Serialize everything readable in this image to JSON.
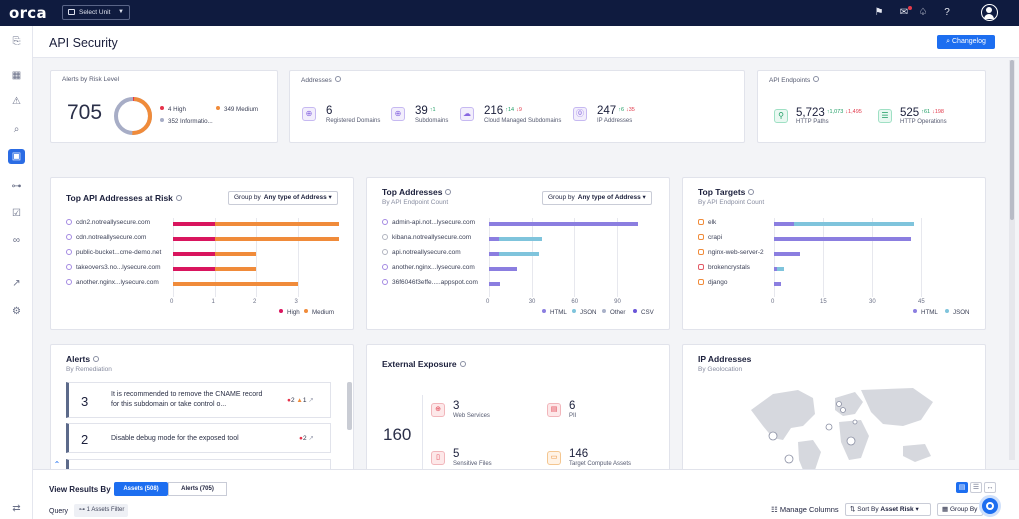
{
  "topbar": {
    "logo": "orca",
    "unit_select": "Select Unit"
  },
  "page": {
    "title": "API Security",
    "changelog": "Changelog"
  },
  "risk": {
    "title": "Alerts by Risk Level",
    "total": "705",
    "high": "4 High",
    "medium": "349 Medium",
    "informational": "352 Informatio...",
    "colors": {
      "high": "#e6334b",
      "medium": "#f08b3a",
      "informational": "#a7adc6"
    }
  },
  "addresses": {
    "title": "Addresses",
    "items": [
      {
        "value": "6",
        "label": "Registered Domains",
        "up": "",
        "down": ""
      },
      {
        "value": "39",
        "label": "Subdomains",
        "up": "↑1",
        "down": ""
      },
      {
        "value": "216",
        "label": "Cloud Managed Subdomains",
        "up": "↑14",
        "down": "↓9"
      },
      {
        "value": "247",
        "label": "IP Addresses",
        "up": "↑6",
        "down": "↓35"
      }
    ]
  },
  "endpoints": {
    "title": "API Endpoints",
    "items": [
      {
        "value": "5,723",
        "label": "HTTP Paths",
        "up": "↑1,073",
        "down": "↓1,495"
      },
      {
        "value": "525",
        "label": "HTTP Operations",
        "up": "↑61",
        "down": "↓198"
      }
    ]
  },
  "top_addresses_at_risk": {
    "title": "Top API Addresses at Risk",
    "group_by_label": "Group by",
    "group_by_value": "Any type of Address",
    "legend": [
      "High",
      "Medium"
    ],
    "chart_data": {
      "type": "bar",
      "orientation": "horizontal",
      "stacked": true,
      "categories": [
        "cdn2.notreallysecure.com",
        "cdn.notreallysecure.com",
        "public-bucket...cme-demo.net",
        "takeovers3.no...lysecure.com",
        "another.nginx...lysecure.com"
      ],
      "series": [
        {
          "name": "High",
          "values": [
            1,
            1,
            1,
            1,
            0
          ],
          "color": "#d9155e"
        },
        {
          "name": "Medium",
          "values": [
            3,
            3,
            1,
            1,
            3
          ],
          "color": "#f08b3a"
        }
      ],
      "xticks": [
        "0",
        "1",
        "2",
        "3"
      ],
      "xlim": [
        0,
        4
      ]
    }
  },
  "top_addresses": {
    "title": "Top Addresses",
    "subtitle": "By API Endpoint Count",
    "group_by_label": "Group by",
    "group_by_value": "Any type of Address",
    "legend": [
      "HTML",
      "JSON",
      "Other",
      "CSV"
    ],
    "chart_data": {
      "type": "bar",
      "orientation": "horizontal",
      "stacked": true,
      "categories": [
        "admin-api.not...lysecure.com",
        "kibana.notreallysecure.com",
        "api.notreallysecure.com",
        "another.nginx...lysecure.com",
        "36f6046f3effe.....appspot.com"
      ],
      "series": [
        {
          "name": "HTML",
          "values": [
            105,
            7,
            7,
            20,
            8
          ],
          "color": "#8b7ee0"
        },
        {
          "name": "JSON",
          "values": [
            0,
            30,
            28,
            0,
            0
          ],
          "color": "#7fc4dc"
        },
        {
          "name": "Other",
          "values": [
            0,
            0,
            0,
            0,
            0
          ],
          "color": "#a9b1c8"
        },
        {
          "name": "CSV",
          "values": [
            0,
            0,
            0,
            0,
            0
          ],
          "color": "#6a55d8"
        }
      ],
      "xticks": [
        "0",
        "30",
        "60",
        "90"
      ],
      "xlim": [
        0,
        118
      ]
    }
  },
  "top_targets": {
    "title": "Top Targets",
    "subtitle": "By API Endpoint Count",
    "legend": [
      "HTML",
      "JSON"
    ],
    "chart_data": {
      "type": "bar",
      "orientation": "horizontal",
      "stacked": true,
      "categories": [
        "elk",
        "crapi",
        "nginx-web-server-2",
        "brokencrystals",
        "django"
      ],
      "series": [
        {
          "name": "HTML",
          "values": [
            6,
            42,
            8,
            1,
            2
          ],
          "color": "#8b7ee0"
        },
        {
          "name": "JSON",
          "values": [
            37,
            0,
            0,
            2,
            0
          ],
          "color": "#7fc4dc"
        }
      ],
      "xticks": [
        "0",
        "15",
        "30",
        "45"
      ],
      "xlim": [
        0,
        60
      ]
    }
  },
  "alerts": {
    "title": "Alerts",
    "subtitle": "By Remediation",
    "items": [
      {
        "num": "3",
        "text": "It is recommended to remove the CNAME record for this subdomain or take control o...",
        "high": "2",
        "medium": "1"
      },
      {
        "num": "2",
        "text": "Disable debug mode for the exposed tool",
        "high": "2",
        "medium": ""
      }
    ]
  },
  "external_exposure": {
    "title": "External Exposure",
    "total": "160",
    "items": [
      {
        "value": "3",
        "label": "Web Services"
      },
      {
        "value": "6",
        "label": "PII"
      },
      {
        "value": "5",
        "label": "Sensitive Files"
      },
      {
        "value": "146",
        "label": "Target Compute Assets"
      }
    ]
  },
  "ip_addresses": {
    "title": "IP Addresses",
    "subtitle": "By Geolocation"
  },
  "bottom": {
    "view_results_by": "View Results By",
    "assets_tab": "Assets (508)",
    "alerts_tab": "Alerts (705)",
    "query": "Query",
    "assets_filter": "1 Assets Filter",
    "manage_columns": "Manage Columns",
    "sort_by": "Sort By",
    "sort_value": "Asset Risk",
    "group_by": "Group By"
  }
}
